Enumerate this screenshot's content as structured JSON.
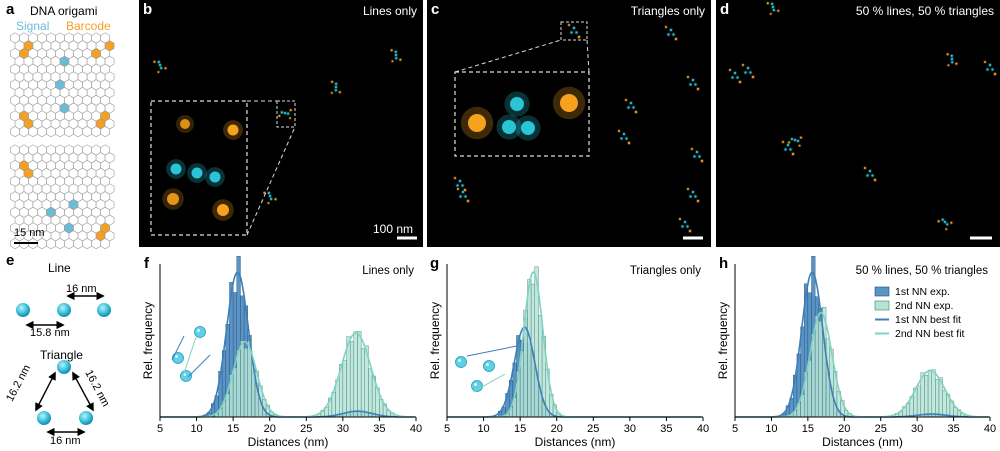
{
  "panel_letters": {
    "a": "a",
    "b": "b",
    "c": "c",
    "d": "d",
    "e": "e",
    "f": "f",
    "g": "g",
    "h": "h"
  },
  "panel_a": {
    "title": "DNA origami",
    "signal_label": "Signal",
    "barcode_label": "Barcode",
    "scale_label": "15 nm",
    "signal_color": "#6bbcd6",
    "barcode_color": "#f4a023"
  },
  "panel_e": {
    "line_title": "Line",
    "line_dist_top": "16 nm",
    "line_dist_bottom": "15.8 nm",
    "triangle_title": "Triangle",
    "tri_left": "16.2 nm",
    "tri_right": "16.2 nm",
    "tri_bottom": "16 nm"
  },
  "images": {
    "b_title": "Lines only",
    "c_title": "Triangles only",
    "d_title": "50 % lines, 50 % triangles",
    "scale_bar": "100 nm"
  },
  "legend": {
    "nn1_exp": "1st NN exp.",
    "nn2_exp": "2nd NN exp.",
    "nn1_fit": "1st NN best fit",
    "nn2_fit": "2nd NN best fit"
  },
  "colors": {
    "nn1": "#3d7fb8",
    "nn1_fill": "#5a93c4",
    "nn2": "#7ed3c2",
    "nn2_fill": "#b7e3d6",
    "signal": "#29c4d6",
    "barcode": "#f7a21c"
  },
  "chart_data": [
    {
      "type": "bar",
      "panel": "f",
      "title": "Lines only",
      "xlabel": "Distances (nm)",
      "ylabel": "Rel. frequency",
      "xlim": [
        5,
        40
      ],
      "xticks": [
        5,
        10,
        15,
        20,
        25,
        30,
        35,
        40
      ],
      "series": [
        {
          "name": "1st NN exp.",
          "fit": {
            "mu": 15.6,
            "sigma": 1.5,
            "amp": 1.0
          },
          "extra_fit": {
            "mu": 32,
            "sigma": 2.0,
            "amp": 0.04
          }
        },
        {
          "name": "2nd NN exp.",
          "fit": {
            "mu": 16.6,
            "sigma": 1.6,
            "amp": 0.52
          },
          "extra_fit": {
            "mu": 31.8,
            "sigma": 2.0,
            "amp": 0.58
          }
        }
      ]
    },
    {
      "type": "bar",
      "panel": "g",
      "title": "Triangles only",
      "xlabel": "Distances (nm)",
      "ylabel": "Rel. frequency",
      "xlim": [
        5,
        40
      ],
      "xticks": [
        5,
        10,
        15,
        20,
        25,
        30,
        35,
        40
      ],
      "series": [
        {
          "name": "1st NN exp.",
          "fit": {
            "mu": 15.6,
            "sigma": 1.4,
            "amp": 0.62
          }
        },
        {
          "name": "2nd NN exp.",
          "fit": {
            "mu": 16.8,
            "sigma": 1.3,
            "amp": 1.0
          }
        }
      ]
    },
    {
      "type": "bar",
      "panel": "h",
      "title": "50 % lines, 50 % triangles",
      "xlabel": "Distances (nm)",
      "ylabel": "Rel. frequency",
      "xlim": [
        5,
        40
      ],
      "xticks": [
        5,
        10,
        15,
        20,
        25,
        30,
        35,
        40
      ],
      "series": [
        {
          "name": "1st NN exp.",
          "fit": {
            "mu": 15.6,
            "sigma": 1.45,
            "amp": 1.0
          },
          "extra_fit": {
            "mu": 32,
            "sigma": 2.0,
            "amp": 0.02
          }
        },
        {
          "name": "2nd NN exp.",
          "fit": {
            "mu": 16.8,
            "sigma": 1.5,
            "amp": 0.72
          },
          "extra_fit": {
            "mu": 31.8,
            "sigma": 2.0,
            "amp": 0.32
          }
        }
      ]
    }
  ]
}
